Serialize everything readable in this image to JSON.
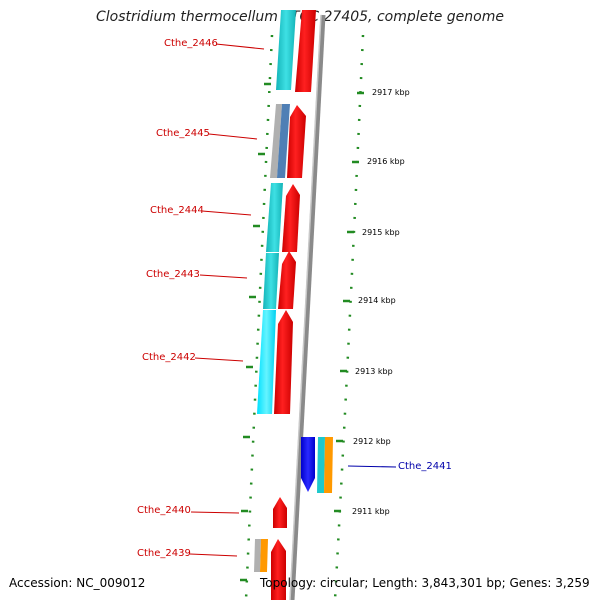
{
  "header": {
    "title": "Clostridium thermocellum ATCC 27405, complete genome"
  },
  "footer": {
    "accession": "Accession: NC_009012",
    "summary": "Topology: circular; Length: 3,843,301 bp; Genes: 3,259"
  },
  "ticks": [
    "2917 kbp",
    "2916 kbp",
    "2915 kbp",
    "2914 kbp",
    "2913 kbp",
    "2912 kbp",
    "2911 kbp"
  ],
  "genes": [
    {
      "name": "Cthe_2446",
      "strand": "+"
    },
    {
      "name": "Cthe_2445",
      "strand": "+"
    },
    {
      "name": "Cthe_2444",
      "strand": "+"
    },
    {
      "name": "Cthe_2443",
      "strand": "+"
    },
    {
      "name": "Cthe_2442",
      "strand": "+"
    },
    {
      "name": "Cthe_2441",
      "strand": "-"
    },
    {
      "name": "Cthe_2440",
      "strand": "+"
    },
    {
      "name": "Cthe_2439",
      "strand": "+"
    }
  ],
  "colors": {
    "cds_forward": "#ff0000",
    "cds_reverse": "#0000ff",
    "cog_cyan": "#1ec8cc",
    "cog_steelblue": "#4f7fb5",
    "cog_gray": "#b0b0b0",
    "cog_orange": "#ff9900",
    "dots": "#228b22",
    "backbone": "#8a8a8a",
    "label_forward": "#cc0000",
    "label_reverse": "#0000aa"
  }
}
